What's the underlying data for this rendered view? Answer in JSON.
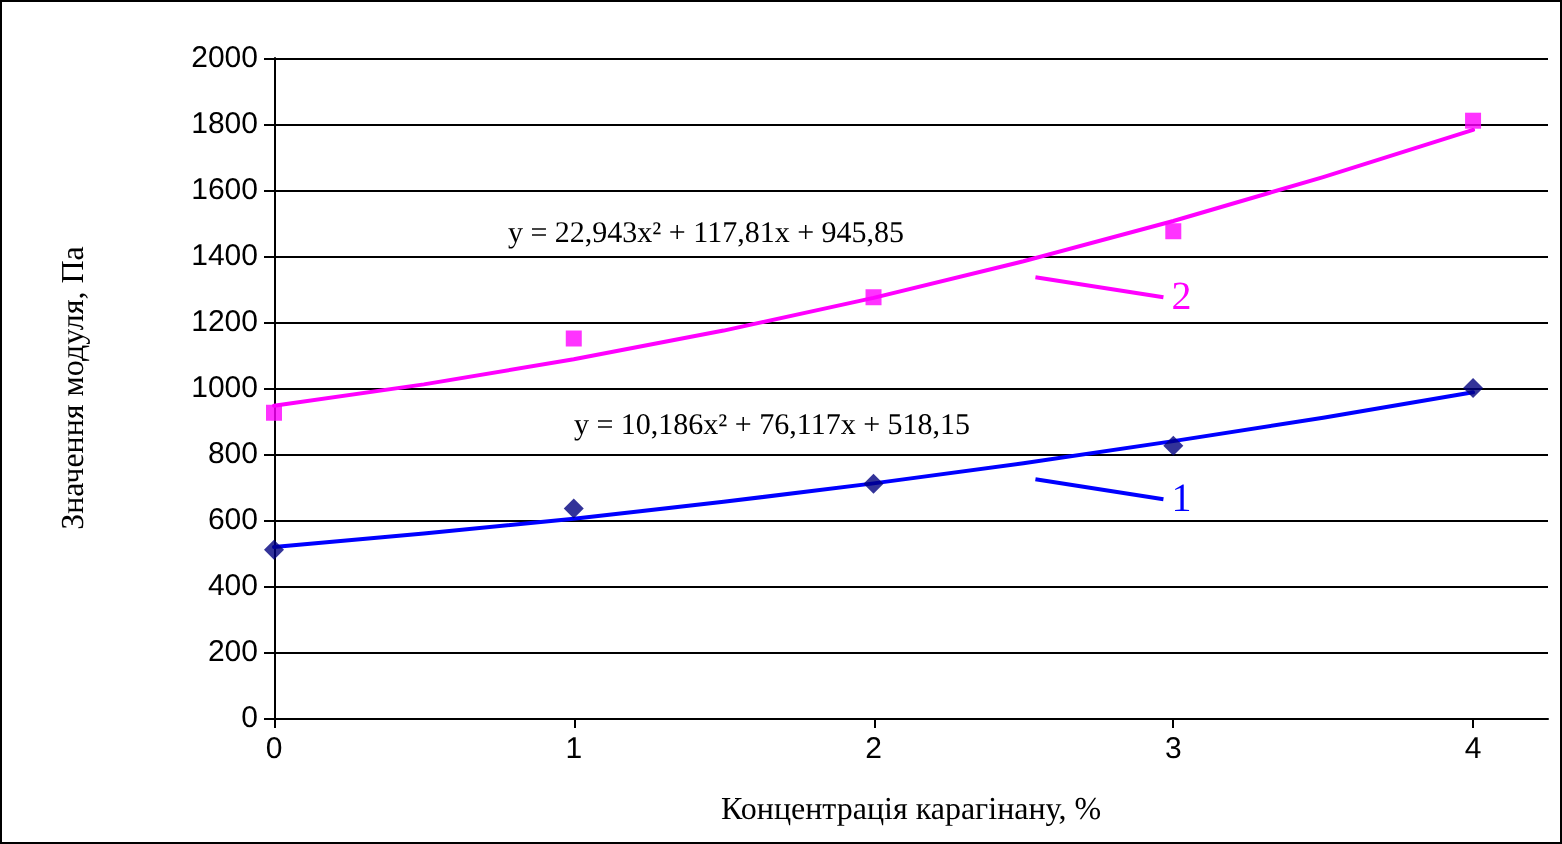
{
  "chart_data": {
    "type": "scatter",
    "xlabel": "Концентрація карагінану, %",
    "ylabel": "Значення модуля, Па",
    "xlim": [
      0,
      4.25
    ],
    "xticks": [
      0,
      1,
      2,
      3,
      4
    ],
    "ylim": [
      0,
      2000
    ],
    "yticks": [
      0,
      200,
      400,
      600,
      800,
      1000,
      1200,
      1400,
      1600,
      1800,
      2000
    ],
    "grid": "y",
    "legend": "right",
    "series": [
      {
        "marker": "diamond",
        "color": "#000080",
        "x": [
          0,
          1,
          2,
          3,
          4
        ],
        "values": [
          510,
          635,
          710,
          825,
          1000
        ]
      },
      {
        "marker": "square",
        "color": "#ff00ff",
        "x": [
          0,
          1,
          2,
          3,
          4
        ],
        "values": [
          925,
          1150,
          1275,
          1475,
          1810
        ]
      },
      {
        "type": "line",
        "name": "1",
        "marker": "none",
        "color": "#0000ff",
        "x": [
          0,
          0.5,
          1,
          1.5,
          2,
          2.5,
          3,
          3.5,
          4
        ],
        "values": [
          518,
          559,
          604,
          655,
          711,
          772,
          839,
          910,
          987
        ]
      },
      {
        "type": "line",
        "name": "2",
        "marker": "none",
        "color": "#ff00ff",
        "x": [
          0,
          0.5,
          1,
          1.5,
          2,
          2.5,
          3,
          3.5,
          4
        ],
        "values": [
          946,
          1011,
          1087,
          1174,
          1273,
          1384,
          1506,
          1639,
          1782
        ]
      }
    ],
    "annotations": [
      "y = 10,186x² + 76,117x + 518,15",
      "y = 22,943x² + 117,81x + 945,85"
    ]
  }
}
